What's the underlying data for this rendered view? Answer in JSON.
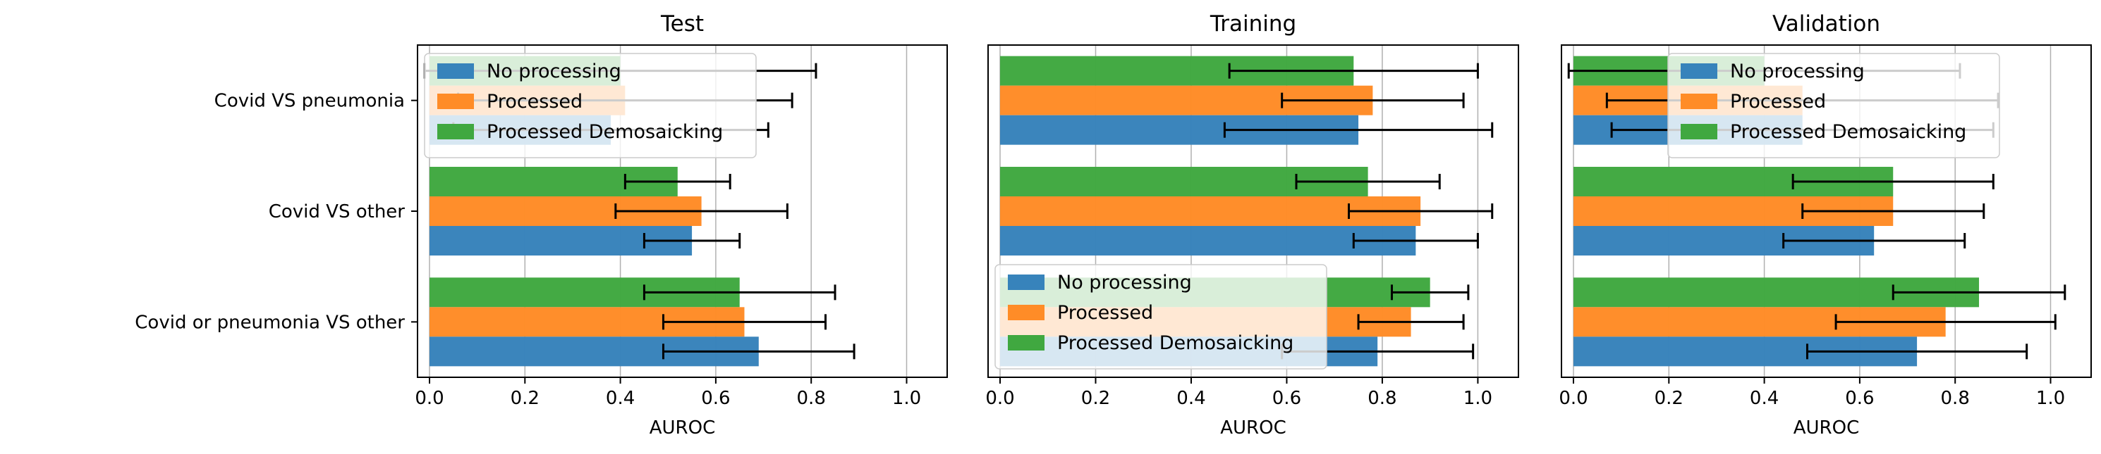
{
  "chart_data": {
    "type": "bar",
    "orientation": "horizontal",
    "categories": [
      "Covid VS pneumonia",
      "Covid VS other",
      "Covid or pneumonia VS other"
    ],
    "xlabel": "AUROC",
    "xlim": [
      0.0,
      1.0
    ],
    "xticks": [
      "0.0",
      "0.2",
      "0.4",
      "0.6",
      "0.8",
      "1.0"
    ],
    "grid": "vertical",
    "colors": {
      "No processing": "#3783bb",
      "Processed": "#ff8c27",
      "Processed Demosaicking": "#40a840"
    },
    "panels": [
      {
        "title": "Test",
        "legend_position": "top-left",
        "series": [
          {
            "name": "No processing",
            "values": [
              0.38,
              0.55,
              0.69
            ],
            "error": [
              0.33,
              0.1,
              0.2
            ]
          },
          {
            "name": "Processed",
            "values": [
              0.41,
              0.57,
              0.66
            ],
            "error": [
              0.35,
              0.18,
              0.17
            ]
          },
          {
            "name": "Processed Demosaicking",
            "values": [
              0.4,
              0.52,
              0.65
            ],
            "error": [
              0.41,
              0.11,
              0.2
            ]
          }
        ]
      },
      {
        "title": "Training",
        "legend_position": "bottom-left",
        "series": [
          {
            "name": "No processing",
            "values": [
              0.75,
              0.87,
              0.79
            ],
            "error": [
              0.28,
              0.13,
              0.2
            ]
          },
          {
            "name": "Processed",
            "values": [
              0.78,
              0.88,
              0.86
            ],
            "error": [
              0.19,
              0.15,
              0.11
            ]
          },
          {
            "name": "Processed Demosaicking",
            "values": [
              0.74,
              0.77,
              0.9
            ],
            "error": [
              0.26,
              0.15,
              0.08
            ]
          }
        ]
      },
      {
        "title": "Validation",
        "legend_position": "top-right",
        "series": [
          {
            "name": "No processing",
            "values": [
              0.48,
              0.63,
              0.72
            ],
            "error": [
              0.4,
              0.19,
              0.23
            ]
          },
          {
            "name": "Processed",
            "values": [
              0.48,
              0.67,
              0.78
            ],
            "error": [
              0.41,
              0.19,
              0.23
            ]
          },
          {
            "name": "Processed Demosaicking",
            "values": [
              0.4,
              0.67,
              0.85
            ],
            "error": [
              0.41,
              0.21,
              0.18
            ]
          }
        ]
      }
    ]
  }
}
